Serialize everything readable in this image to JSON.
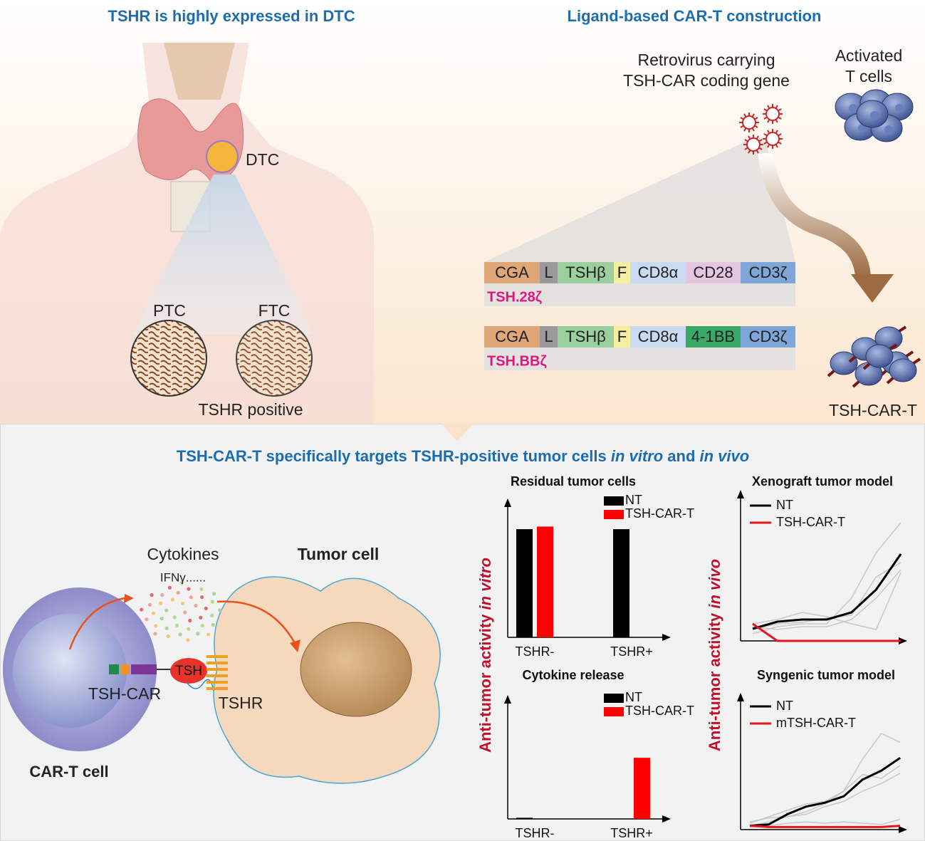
{
  "expression": {
    "title": "TSHR is highly expressed in DTC",
    "tumor_label": "DTC",
    "samples": [
      "PTC",
      "FTC"
    ],
    "samples_caption": "TSHR positive"
  },
  "construction": {
    "title": "Ligand-based CAR-T construction",
    "vector_lines": [
      "Retrovirus carrying",
      "TSH-CAR coding gene"
    ],
    "cells_lines": [
      "Activated",
      "T cells"
    ],
    "product": "TSH-CAR-T",
    "constructs": [
      {
        "name": "TSH.28ζ",
        "segments": [
          "CGA",
          "L",
          "TSHβ",
          "F",
          "CD8α",
          "CD28",
          "CD3ζ"
        ]
      },
      {
        "name": "TSH.BBζ",
        "segments": [
          "CGA",
          "L",
          "TSHβ",
          "F",
          "CD8α",
          "4-1BB",
          "CD3ζ"
        ]
      }
    ]
  },
  "results": {
    "title_parts": [
      "TSH-CAR-T specifically targets TSHR-positive tumor cells ",
      "in vitro",
      " and ",
      "in vivo"
    ],
    "mechanism": {
      "cytokines": "Cytokines",
      "ifn": "IFNγ......",
      "tumor_cell": "Tumor cell",
      "ligand": "TSH",
      "car": "TSH-CAR",
      "receptor": "TSHR",
      "car_t_cell": "CAR-T cell"
    },
    "in_vitro_axis": [
      "Anti-tumor activity ",
      "in vitro"
    ],
    "in_vivo_axis": [
      "Anti-tumor activity ",
      "in vivo"
    ]
  },
  "chart_data": [
    {
      "type": "bar",
      "title": "Residual tumor cells",
      "categories": [
        "TSHR-",
        "TSHR+"
      ],
      "ylim": [
        0,
        1
      ],
      "series": [
        {
          "name": "NT",
          "color": "#000000",
          "values": [
            0.83,
            0.83
          ]
        },
        {
          "name": "TSH-CAR-T",
          "color": "#ff0000",
          "values": [
            0.85,
            0
          ]
        }
      ]
    },
    {
      "type": "bar",
      "title": "Cytokine release",
      "categories": [
        "TSHR-",
        "TSHR+"
      ],
      "ylim": [
        0,
        1
      ],
      "series": [
        {
          "name": "NT",
          "color": "#000000",
          "values": [
            0.01,
            0
          ]
        },
        {
          "name": "TSH-CAR-T",
          "color": "#ff0000",
          "values": [
            0,
            0.53
          ]
        }
      ]
    },
    {
      "type": "line",
      "title": "Xenograft tumor model",
      "x": [
        0,
        1,
        2,
        3,
        4,
        5,
        6
      ],
      "xlim": [
        0,
        6.2
      ],
      "ylim": [
        0,
        1
      ],
      "series": [
        {
          "name": "NT",
          "color": "#000000",
          "values": [
            0.085,
            0.135,
            0.15,
            0.15,
            0.2,
            0.36,
            0.61
          ]
        },
        {
          "name": "TSH-CAR-T",
          "color": "#e8141c",
          "values": [
            0.12,
            0,
            0,
            0,
            0,
            0,
            0
          ]
        }
      ],
      "replicate_color": "#c8c8c8",
      "replicates": [
        [
          0.05,
          0.1,
          0.12,
          0.12,
          0.3,
          0.62,
          0.83
        ],
        [
          0.1,
          0.08,
          0.1,
          0.1,
          0.15,
          0.3,
          0.5
        ],
        [
          0.12,
          0.15,
          0.2,
          0.17,
          0.12,
          0.08,
          0.48
        ],
        [
          0.08,
          0.12,
          0.13,
          0.16,
          0.18,
          0.45,
          0.55
        ]
      ]
    },
    {
      "type": "line",
      "title": "Syngenic tumor model",
      "x": [
        0,
        1,
        2,
        3,
        4,
        5,
        6,
        7,
        8
      ],
      "xlim": [
        0,
        8.3
      ],
      "ylim": [
        0,
        1
      ],
      "series": [
        {
          "name": "NT",
          "color": "#000000",
          "values": [
            0.03,
            0.04,
            0.12,
            0.18,
            0.21,
            0.26,
            0.39,
            0.46,
            0.56
          ]
        },
        {
          "name": "mTSH-CAR-T",
          "color": "#e8141c",
          "values": [
            0.03,
            0.02,
            0.02,
            0.02,
            0.02,
            0.02,
            0.02,
            0.02,
            0.03
          ]
        }
      ],
      "replicate_color": "#c8c8c8",
      "replicates": [
        [
          0.05,
          0.1,
          0.15,
          0.2,
          0.22,
          0.3,
          0.55,
          0.75,
          0.68
        ],
        [
          0.03,
          0.06,
          0.1,
          0.14,
          0.2,
          0.3,
          0.43,
          0.4,
          0.5
        ],
        [
          0.06,
          0.09,
          0.1,
          0.12,
          0.18,
          0.22,
          0.3,
          0.36,
          0.44
        ],
        [
          0.02,
          0.03,
          0.05,
          0.06,
          0.05,
          0.06,
          0.05,
          0.04,
          0.08
        ]
      ]
    }
  ]
}
